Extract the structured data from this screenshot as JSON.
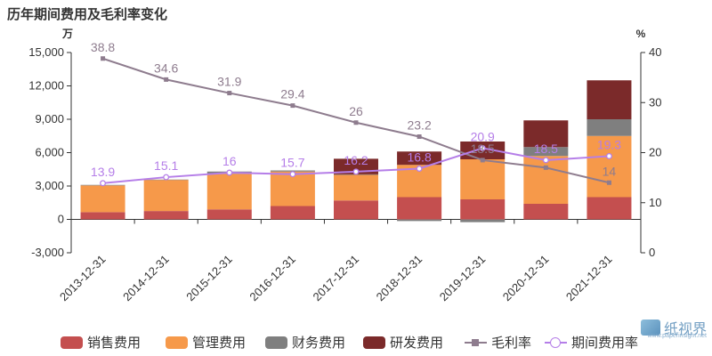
{
  "page": {
    "title": "历年期间费用及毛利率变化"
  },
  "watermark": {
    "text": "纸视界",
    "sub": "www.paperinsight.net"
  },
  "colors": {
    "sales": "#c44f4f",
    "admin": "#f6994a",
    "finance": "#7f7f7f",
    "rnd": "#7b2a2a",
    "gross_margin": "#8e7c8e",
    "period_rate": "#b57ee8"
  },
  "chart_data": {
    "type": "bar",
    "title": "历年期间费用及毛利率变化",
    "categories": [
      "2013-12-31",
      "2014-12-31",
      "2015-12-31",
      "2016-12-31",
      "2017-12-31",
      "2018-12-31",
      "2019-12-31",
      "2020-12-31",
      "2021-12-31"
    ],
    "y_left": {
      "unit": "万",
      "ylim": [
        -3000,
        15000
      ],
      "ticks": [
        "-3,000",
        "0",
        "3,000",
        "6,000",
        "9,000",
        "12,000",
        "15,000"
      ]
    },
    "y_right": {
      "unit": "%",
      "ylim": [
        0,
        40
      ],
      "ticks": [
        "0",
        "10",
        "20",
        "30",
        "40"
      ]
    },
    "bar_series": [
      {
        "name": "销售费用",
        "values": [
          650,
          750,
          900,
          1200,
          1700,
          2000,
          1800,
          1400,
          2000
        ]
      },
      {
        "name": "管理费用",
        "values": [
          2400,
          2800,
          3200,
          3100,
          2300,
          2900,
          3600,
          4300,
          5500
        ]
      },
      {
        "name": "财务费用",
        "values": [
          50,
          30,
          200,
          100,
          50,
          -150,
          -250,
          800,
          1500
        ]
      },
      {
        "name": "研发费用",
        "values": [
          0,
          0,
          0,
          0,
          1400,
          1200,
          1600,
          2400,
          3500
        ]
      }
    ],
    "line_series": [
      {
        "name": "毛利率",
        "values": [
          38.8,
          34.6,
          31.9,
          29.4,
          26,
          23.2,
          18.5,
          17,
          14
        ],
        "labels": [
          "38.8",
          "34.6",
          "31.9",
          "29.4",
          "26",
          "23.2",
          "18.5",
          "",
          "14"
        ]
      },
      {
        "name": "期间费用率",
        "values": [
          13.9,
          15.1,
          16,
          15.7,
          16.2,
          16.8,
          20.9,
          18.5,
          19.3
        ],
        "labels": [
          "13.9",
          "15.1",
          "16",
          "15.7",
          "16.2",
          "16.8",
          "20.9",
          "18.5",
          "19.3"
        ]
      }
    ],
    "grid": false,
    "legend_position": "bottom"
  },
  "legend": [
    {
      "label": "销售费用",
      "kind": "bar",
      "color": "#c44f4f"
    },
    {
      "label": "管理费用",
      "kind": "bar",
      "color": "#f6994a"
    },
    {
      "label": "财务费用",
      "kind": "bar",
      "color": "#7f7f7f"
    },
    {
      "label": "研发费用",
      "kind": "bar",
      "color": "#7b2a2a"
    },
    {
      "label": "毛利率",
      "kind": "line-square",
      "color": "#8e7c8e"
    },
    {
      "label": "期间费用率",
      "kind": "line-circle",
      "color": "#b57ee8"
    }
  ]
}
